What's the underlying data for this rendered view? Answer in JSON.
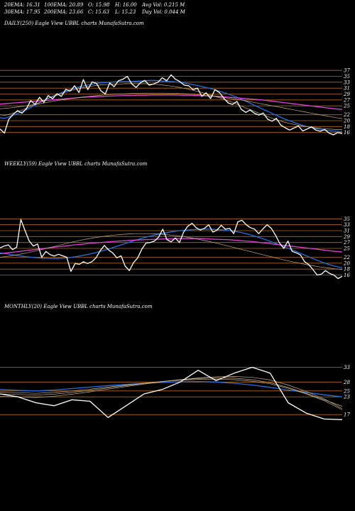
{
  "stats": {
    "ema20": "20EMA: 16.31",
    "ema100": "100EMA: 20.89",
    "open": "O: 15.98",
    "high": "H: 16.00",
    "avgvol": "Avg Vol: 0.215  M",
    "ema30": "30EMA: 17.95",
    "ema200": "200EMA: 23.66",
    "close": "C: 15.63",
    "low": "L: 15.23",
    "dayvol": "Day Vol: 0.044  M"
  },
  "colors": {
    "background": "#000000",
    "price": "#ffffff",
    "ema_short": "#2a6ee0",
    "ema_long": "#e040d8",
    "ema_mid": "#c8b090",
    "level_line": "#b86a10"
  },
  "chart_data": [
    {
      "type": "line",
      "title": "DAILY(250) Eagle   View  UBBL  charts MunafaSutra.com",
      "yticks": [
        "37",
        "35",
        "33",
        "31",
        "29",
        "27",
        "25",
        "22",
        "20",
        "18",
        "16"
      ],
      "ylim": [
        14,
        38
      ],
      "levels": [
        37,
        35,
        33,
        31,
        29,
        27,
        25,
        22,
        20,
        18,
        16
      ],
      "series": [
        {
          "role": "price",
          "color": "#ffffff",
          "values": [
            17.2,
            15.8,
            20.5,
            22.1,
            23.4,
            22.5,
            24.0,
            26.8,
            25.5,
            27.9,
            26.2,
            28.5,
            27.4,
            29.1,
            28.2,
            30.6,
            30.0,
            31.8,
            29.5,
            33.9,
            30.5,
            33.1,
            32.6,
            30.1,
            29.0,
            32.8,
            31.5,
            33.5,
            34.0,
            35.0,
            32.5,
            31.2,
            32.8,
            33.6,
            32.0,
            32.4,
            33.0,
            34.5,
            33.5,
            35.5,
            34.0,
            33.2,
            32.0,
            31.8,
            30.5,
            31.0,
            28.2,
            29.4,
            27.5,
            30.5,
            29.5,
            27.6,
            26.0,
            25.5,
            26.5,
            23.8,
            22.8,
            23.6,
            22.5,
            21.9,
            22.6,
            20.5,
            19.8,
            20.8,
            18.5,
            17.6,
            16.8,
            17.5,
            18.2,
            16.5,
            17.2,
            17.9,
            16.8,
            16.4,
            17.0,
            15.8,
            15.2,
            16.0,
            15.6
          ]
        },
        {
          "role": "ema20",
          "color": "#2a6ee0",
          "values": [
            21.0,
            20.8,
            21.4,
            22.0,
            22.7,
            23.4,
            24.1,
            25.0,
            25.9,
            26.8,
            27.6,
            28.3,
            29.0,
            29.6,
            30.2,
            30.7,
            31.2,
            31.6,
            32.0,
            32.3,
            32.6,
            32.8,
            32.9,
            33.0,
            33.1,
            33.2,
            33.2,
            33.2,
            33.3,
            33.4,
            33.5,
            33.6,
            33.6,
            33.5,
            33.4,
            33.3,
            33.2,
            33.0,
            32.8,
            32.5,
            32.2,
            31.9,
            31.5,
            31.1,
            30.7,
            30.2,
            29.7,
            29.2,
            28.6,
            28.0,
            27.3,
            26.6,
            25.8,
            25.0,
            24.3,
            23.5,
            22.8,
            22.0,
            21.3,
            20.6,
            20.0,
            19.4,
            18.8,
            18.3,
            17.9,
            17.5,
            17.2,
            16.9,
            16.7,
            16.5,
            16.4,
            16.3
          ]
        },
        {
          "role": "ema200",
          "color": "#e040d8",
          "values": [
            25.6,
            25.8,
            26.0,
            26.2,
            26.4,
            26.6,
            26.8,
            27.0,
            27.2,
            27.4,
            27.6,
            27.8,
            28.0,
            28.1,
            28.2,
            28.3,
            28.4,
            28.5,
            28.5,
            28.6,
            28.6,
            28.7,
            28.7,
            28.7,
            28.7,
            28.6,
            28.6,
            28.5,
            28.4,
            28.3,
            28.2,
            28.0,
            27.8,
            27.6,
            27.4,
            27.2,
            27.0,
            26.7,
            26.4,
            26.1,
            25.8,
            25.5,
            25.2,
            24.9,
            24.6,
            24.3,
            24.0,
            23.8
          ]
        },
        {
          "role": "ema30",
          "color": "#c8b090",
          "values": [
            22.0,
            21.8,
            22.2,
            22.7,
            23.3,
            23.9,
            24.6,
            25.3,
            26.0,
            26.8,
            27.5,
            28.1,
            28.7,
            29.3,
            29.8,
            30.3,
            30.7,
            31.1,
            31.4,
            31.7,
            31.9,
            32.1,
            32.2,
            32.3,
            32.4,
            32.4,
            32.5,
            32.5,
            32.5,
            32.5,
            32.5,
            32.4,
            32.3,
            32.2,
            32.0,
            31.8,
            31.6,
            31.3,
            31.0,
            30.7,
            30.3,
            29.9,
            29.5,
            29.0,
            28.5,
            28.0,
            27.5,
            26.9,
            26.3,
            25.7,
            25.0,
            24.3,
            23.7,
            23.0,
            22.3,
            21.7,
            21.1,
            20.5,
            20.0,
            19.5,
            19.1,
            18.7,
            18.4,
            18.1,
            17.9,
            17.7,
            17.5,
            17.3,
            17.2,
            17.1,
            17.0,
            17.0
          ]
        },
        {
          "role": "ema100",
          "color": "#c8b090",
          "values": [
            24.0,
            24.2,
            24.4,
            24.7,
            25.0,
            25.3,
            25.6,
            26.0,
            26.4,
            26.8,
            27.1,
            27.4,
            27.7,
            28.0,
            28.2,
            28.4,
            28.6,
            28.8,
            28.9,
            29.0,
            29.1,
            29.2,
            29.2,
            29.3,
            29.3,
            29.3,
            29.3,
            29.2,
            29.2,
            29.1,
            29.0,
            28.8,
            28.6,
            28.4,
            28.2,
            27.9,
            27.6,
            27.3,
            27.0,
            26.6,
            26.2,
            25.8,
            25.4,
            25.0,
            24.6,
            24.2,
            23.8,
            23.4,
            23.0,
            22.6,
            22.2,
            21.8,
            21.4,
            21.0,
            20.7
          ]
        }
      ]
    },
    {
      "type": "line",
      "title": "WEEKLY(59) Eagle   View  UBBL  charts MunafaSutra.com",
      "yticks": [
        "35",
        "33",
        "31",
        "29",
        "27",
        "25",
        "22",
        "20",
        "18",
        "16"
      ],
      "ylim": [
        13,
        37
      ],
      "levels": [
        35,
        33,
        31,
        29,
        27,
        25,
        22,
        20,
        18,
        16
      ],
      "series": [
        {
          "role": "price",
          "color": "#ffffff",
          "values": [
            25.2,
            25.8,
            26.2,
            24.6,
            25.4,
            34.8,
            31.0,
            27.5,
            25.8,
            26.5,
            22.0,
            24.0,
            22.9,
            22.4,
            23.0,
            22.5,
            22.0,
            17.2,
            19.9,
            19.6,
            20.5,
            19.9,
            20.5,
            21.8,
            24.2,
            26.0,
            24.5,
            23.5,
            21.8,
            22.5,
            19.0,
            17.5,
            20.2,
            21.8,
            24.8,
            26.8,
            27.0,
            27.5,
            28.8,
            31.5,
            28.0,
            27.2,
            28.5,
            27.0,
            30.5,
            32.5,
            33.5,
            32.0,
            31.2,
            31.8,
            33.0,
            30.5,
            31.2,
            32.8,
            31.5,
            31.8,
            30.0,
            34.0,
            34.5,
            33.0,
            32.0,
            31.5,
            30.0,
            31.6,
            33.0,
            31.8,
            29.5,
            26.8,
            25.0,
            27.5,
            24.0,
            23.5,
            22.8,
            20.5,
            19.5,
            17.8,
            16.0,
            16.3,
            17.5,
            16.5,
            16.0,
            14.8,
            15.6
          ]
        },
        {
          "role": "ema_short",
          "color": "#2a6ee0",
          "values": [
            23.5,
            23.2,
            22.8,
            22.5,
            22.2,
            22.0,
            21.8,
            21.7,
            21.6,
            21.6,
            21.7,
            21.9,
            22.2,
            22.6,
            23.0,
            23.5,
            24.1,
            24.7,
            25.4,
            26.1,
            26.8,
            27.5,
            28.2,
            28.8,
            29.3,
            29.8,
            30.2,
            30.6,
            30.9,
            31.1,
            31.3,
            31.4,
            31.5,
            31.5,
            31.4,
            31.3,
            31.1,
            30.8,
            30.4,
            29.9,
            29.3,
            28.6,
            27.9,
            27.1,
            26.3,
            25.4,
            24.6,
            23.7,
            22.8,
            21.9,
            21.0,
            20.2,
            19.5,
            18.9,
            18.4
          ]
        },
        {
          "role": "ema_long",
          "color": "#e040d8",
          "values": [
            23.2,
            23.5,
            23.8,
            24.1,
            24.4,
            24.7,
            25.0,
            25.3,
            25.6,
            25.9,
            26.2,
            26.4,
            26.7,
            26.9,
            27.1,
            27.3,
            27.5,
            27.6,
            27.8,
            27.9,
            28.0,
            28.1,
            28.2,
            28.2,
            28.3,
            28.3,
            28.3,
            28.3,
            28.2,
            28.1,
            28.0,
            27.9,
            27.7,
            27.5,
            27.3,
            27.0,
            26.7,
            26.4,
            26.1,
            25.8,
            25.5,
            25.2,
            24.9,
            24.6,
            24.3,
            24.0,
            23.8
          ]
        },
        {
          "role": "ema_mid",
          "color": "#c8b090",
          "values": [
            22.0,
            22.3,
            22.7,
            23.1,
            23.6,
            24.1,
            24.7,
            25.3,
            25.9,
            26.5,
            27.1,
            27.6,
            28.1,
            28.5,
            28.9,
            29.2,
            29.5,
            29.7,
            29.9,
            30.0,
            30.0,
            30.0,
            29.9,
            29.7,
            29.5,
            29.2,
            28.9,
            28.5,
            28.0,
            27.5,
            27.0,
            26.4,
            25.8,
            25.2,
            24.6,
            24.0,
            23.4,
            22.8,
            22.2,
            21.6,
            21.0,
            20.5,
            20.0,
            19.5,
            19.1,
            18.7,
            18.4,
            18.1,
            17.9
          ]
        }
      ]
    },
    {
      "type": "line",
      "title": "MONTHLY(20) Eagle   View  UBBL  charts MunafaSutra.com",
      "yticks": [
        "33",
        "28",
        "25",
        "23",
        "17"
      ],
      "ylim": [
        12,
        36
      ],
      "levels": [
        33,
        28,
        25,
        23,
        17
      ],
      "series": [
        {
          "role": "price",
          "color": "#ffffff",
          "values": [
            24.0,
            23.0,
            21.0,
            20.0,
            22.0,
            21.5,
            16.0,
            20.0,
            24.0,
            25.5,
            28.0,
            32.0,
            28.5,
            31.0,
            33.0,
            31.0,
            21.0,
            17.5,
            15.5,
            15.3
          ]
        },
        {
          "role": "ema_short",
          "color": "#2a6ee0",
          "values": [
            25.5,
            25.2,
            25.0,
            25.3,
            25.8,
            26.3,
            26.8,
            27.2,
            27.6,
            27.9,
            28.1,
            28.2,
            28.0,
            27.6,
            27.0,
            26.2,
            25.3,
            24.5,
            23.7,
            23.0
          ]
        },
        {
          "role": "ema_mid",
          "color": "#c8b090",
          "values": [
            24.0,
            23.8,
            23.6,
            23.9,
            24.5,
            25.2,
            26.0,
            26.8,
            27.5,
            28.2,
            28.8,
            29.2,
            29.4,
            29.3,
            28.8,
            27.8,
            26.2,
            24.2,
            22.0,
            19.8
          ]
        },
        {
          "role": "ema_mid2",
          "color": "#c8b090",
          "values": [
            23.2,
            23.0,
            22.8,
            23.2,
            23.9,
            24.7,
            25.6,
            26.5,
            27.3,
            28.1,
            28.8,
            29.4,
            29.8,
            29.9,
            29.6,
            28.7,
            27.0,
            24.8,
            22.3,
            19.0
          ]
        },
        {
          "role": "ema_mid3",
          "color": "#c8b090",
          "values": [
            24.6,
            24.4,
            24.2,
            24.5,
            25.0,
            25.6,
            26.3,
            27.0,
            27.6,
            28.2,
            28.6,
            28.9,
            29.0,
            28.8,
            28.3,
            27.4,
            25.9,
            24.0,
            21.7,
            18.6
          ]
        }
      ]
    }
  ]
}
